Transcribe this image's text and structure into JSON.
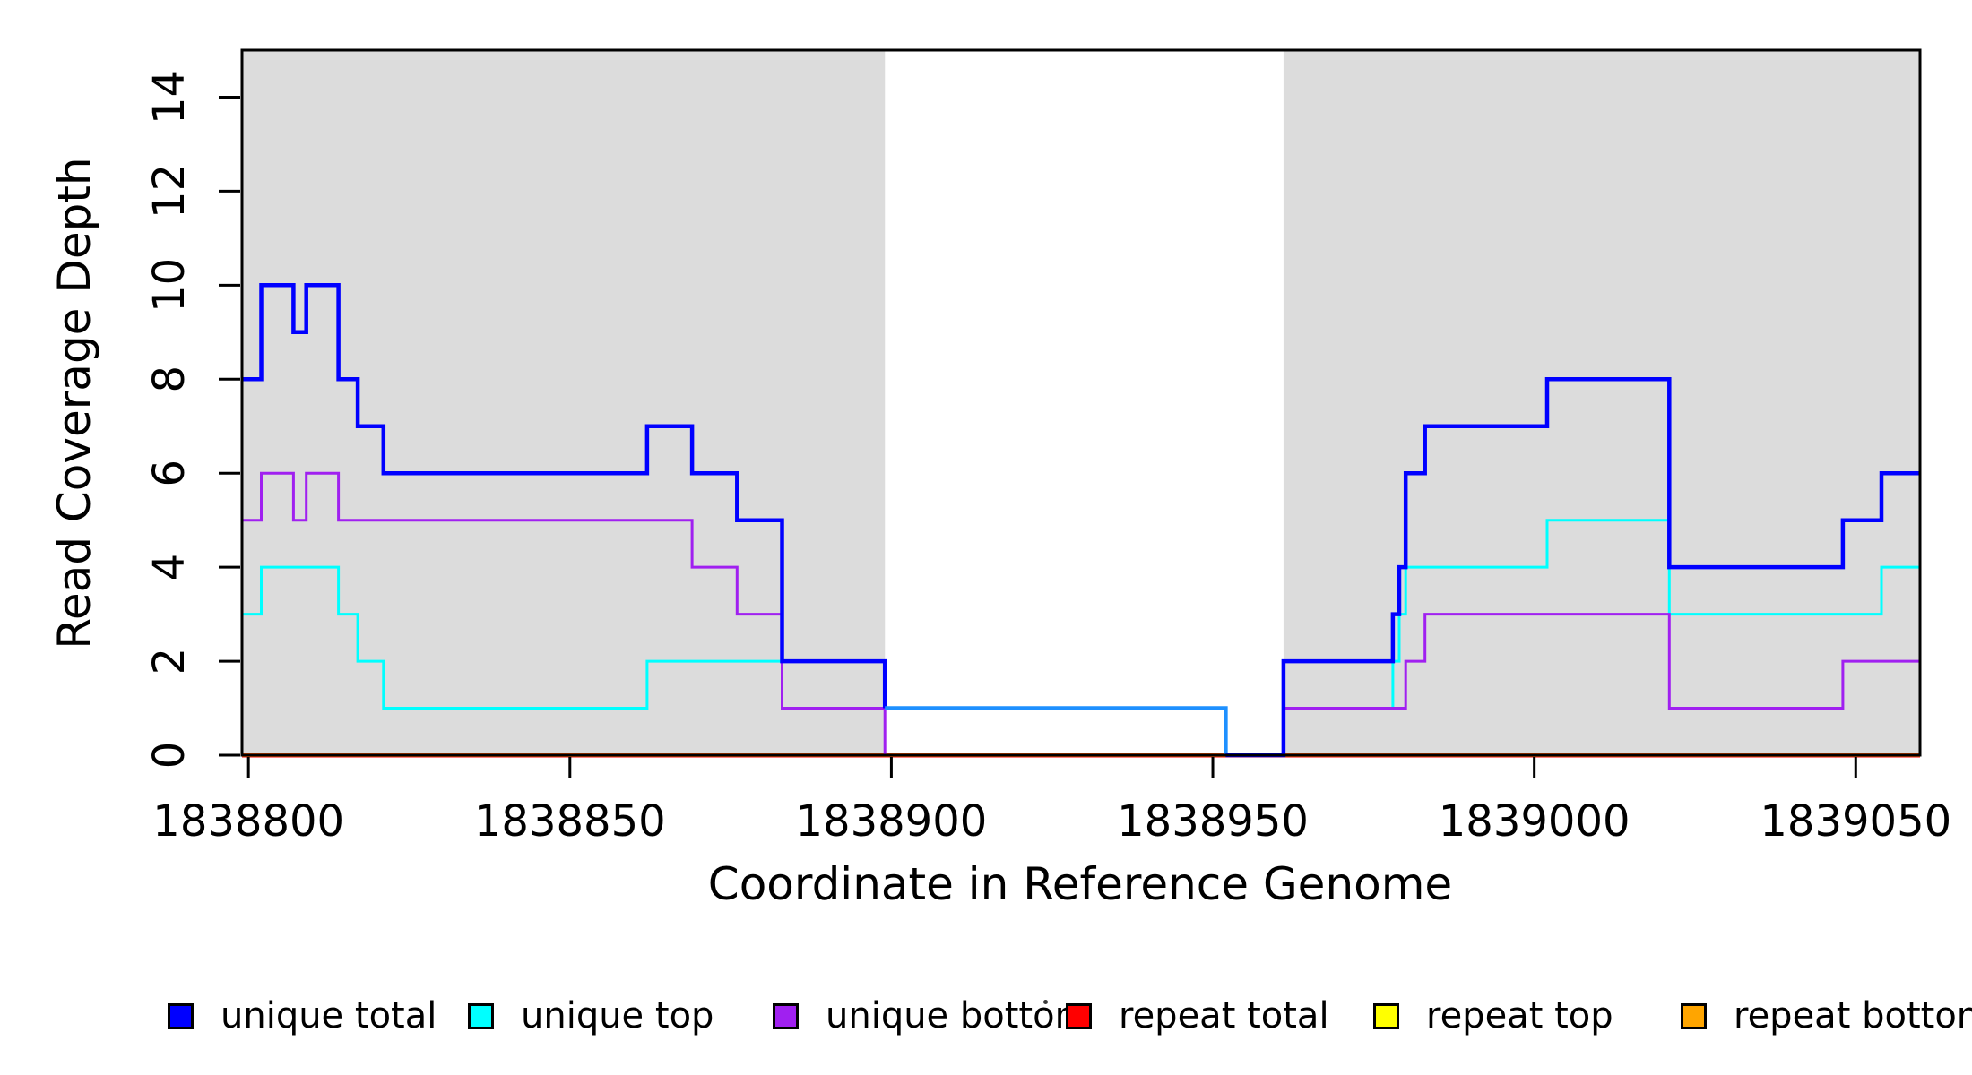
{
  "chart_data": {
    "type": "line",
    "subtype": "step-coverage",
    "xlabel": "Coordinate in Reference Genome",
    "ylabel": "Read Coverage Depth",
    "xlim": [
      1838799,
      1839060
    ],
    "ylim": [
      0,
      15
    ],
    "xticks": [
      1838800,
      1838850,
      1838900,
      1838950,
      1839000,
      1839050
    ],
    "yticks": [
      0,
      2,
      4,
      6,
      8,
      10,
      12,
      14
    ],
    "grid": false,
    "background_color": "#ffffff",
    "shade_color": "#DCDCDC",
    "shaded_regions": [
      [
        1838799,
        1838899
      ],
      [
        1838961,
        1839060
      ]
    ],
    "series": [
      {
        "name": "unique total",
        "color": "#0000FF",
        "linewidth": 4.5,
        "steps": [
          [
            1838799,
            8
          ],
          [
            1838802,
            10
          ],
          [
            1838807,
            9
          ],
          [
            1838809,
            10
          ],
          [
            1838814,
            8
          ],
          [
            1838817,
            7
          ],
          [
            1838821,
            6
          ],
          [
            1838862,
            7
          ],
          [
            1838869,
            6
          ],
          [
            1838876,
            5
          ],
          [
            1838883,
            2
          ],
          [
            1838899,
            1
          ],
          [
            1838952,
            0
          ],
          [
            1838961,
            2
          ],
          [
            1838978,
            3
          ],
          [
            1838979,
            4
          ],
          [
            1838980,
            6
          ],
          [
            1838983,
            7
          ],
          [
            1839002,
            8
          ],
          [
            1839021,
            4
          ],
          [
            1839048,
            5
          ],
          [
            1839054,
            6
          ]
        ]
      },
      {
        "name": "unique top",
        "color": "#00FFFF",
        "linewidth": 3,
        "steps": [
          [
            1838799,
            3
          ],
          [
            1838802,
            4
          ],
          [
            1838814,
            3
          ],
          [
            1838817,
            2
          ],
          [
            1838821,
            1
          ],
          [
            1838862,
            2
          ],
          [
            1838883,
            1
          ],
          [
            1838952,
            0
          ],
          [
            1838961,
            1
          ],
          [
            1838978,
            2
          ],
          [
            1838979,
            3
          ],
          [
            1838980,
            4
          ],
          [
            1839002,
            5
          ],
          [
            1839021,
            3
          ],
          [
            1839054,
            4
          ]
        ]
      },
      {
        "name": "unique bottom",
        "color": "#A020F0",
        "linewidth": 3,
        "steps": [
          [
            1838799,
            5
          ],
          [
            1838802,
            6
          ],
          [
            1838807,
            5
          ],
          [
            1838809,
            6
          ],
          [
            1838814,
            5
          ],
          [
            1838869,
            4
          ],
          [
            1838876,
            3
          ],
          [
            1838883,
            1
          ],
          [
            1838899,
            0
          ],
          [
            1838961,
            1
          ],
          [
            1838980,
            2
          ],
          [
            1838983,
            3
          ],
          [
            1839021,
            1
          ],
          [
            1839048,
            2
          ]
        ]
      },
      {
        "name": "repeat total",
        "color": "#FF0000",
        "linewidth": 5,
        "steps": [
          [
            1838799,
            0
          ]
        ]
      },
      {
        "name": "repeat top",
        "color": "#FFFF00",
        "linewidth": 3,
        "steps": [
          [
            1838799,
            0
          ]
        ]
      },
      {
        "name": "repeat bottom",
        "color": "#FFA500",
        "linewidth": 3.5,
        "steps": [
          [
            1838799,
            0
          ]
        ]
      }
    ],
    "draw_order": [
      "repeat total",
      "repeat top",
      "repeat bottom",
      "unique top",
      "unique bottom",
      "unique total"
    ],
    "blend_segments": [
      {
        "series": "unique total",
        "from": 1838899,
        "to": 1838952,
        "color": "#1E90FF"
      }
    ],
    "legend": {
      "position": "bottom",
      "entries": [
        {
          "label": "unique total",
          "color": "#0000FF"
        },
        {
          "label": "unique top",
          "color": "#00FFFF"
        },
        {
          "label": "unique bottom",
          "color": "#A020F0"
        },
        {
          "label": "repeat total",
          "color": "#FF0000"
        },
        {
          "label": "repeat top",
          "color": "#FFFF00"
        },
        {
          "label": "repeat bottom",
          "color": "#FFA500"
        }
      ]
    }
  }
}
